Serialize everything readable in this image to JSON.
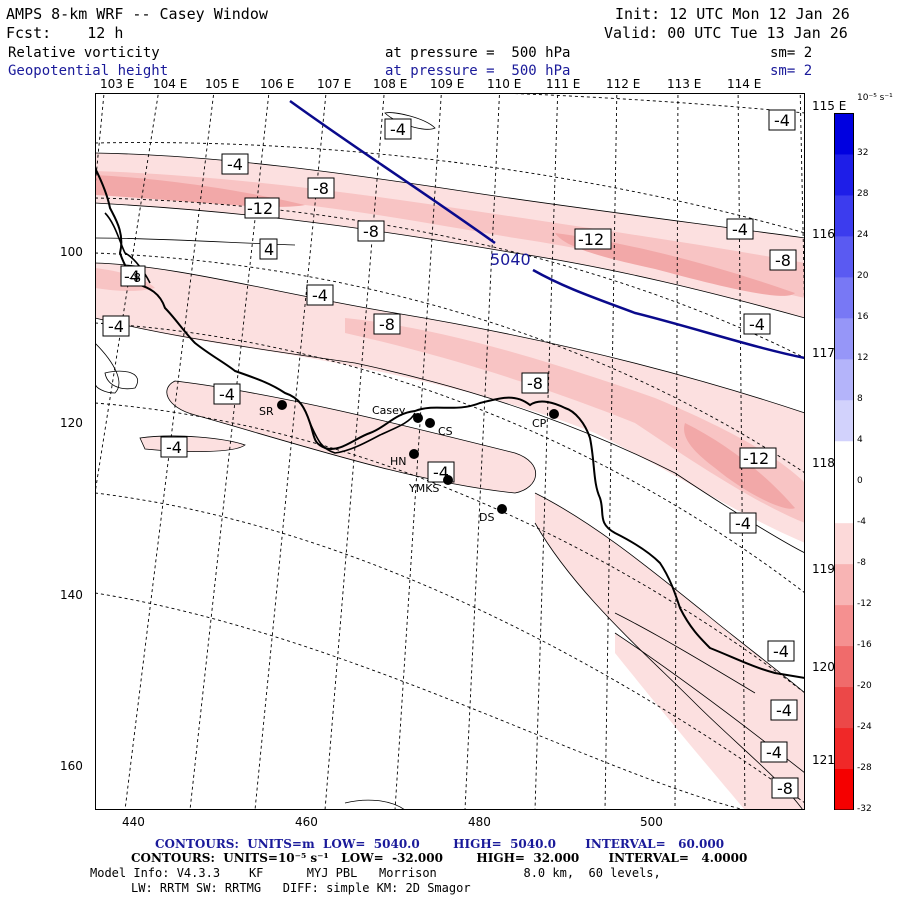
{
  "header": {
    "title": "AMPS 8-km WRF -- Casey Window",
    "init": "Init: 12 UTC Mon 12 Jan 26",
    "fcst": "Fcst:    12 h",
    "valid": "Valid: 00 UTC Tue 13 Jan 26",
    "field1": {
      "name": "Relative vorticity",
      "level": "at pressure =  500 hPa",
      "sm": "sm= 2"
    },
    "field2": {
      "name": "Geopotential height",
      "level": "at pressure =  500 hPa",
      "sm": "sm= 2"
    }
  },
  "lon_labels": [
    "103 E",
    "104 E",
    "105 E",
    "106 E",
    "107 E",
    "108 E",
    "109 E",
    "110 E",
    "111 E",
    "112 E",
    "113 E",
    "114 E"
  ],
  "lat_labels": [
    "115 E",
    "116 E",
    "117 E",
    "118 E",
    "119 E",
    "120 E",
    "121 E"
  ],
  "y_ticks": [
    "100",
    "120",
    "140",
    "160"
  ],
  "x_ticks": [
    "440",
    "460",
    "480",
    "500"
  ],
  "contour_labels": [
    "-4",
    "-4",
    "-4",
    "-8",
    "-12",
    "-8",
    "-12",
    "-4",
    "-8",
    "4",
    "-4",
    "-8",
    "-4",
    "-8",
    "-4",
    "-4",
    "-4",
    "-4",
    "-12",
    "-4",
    "-4",
    "-4",
    "-4",
    "-4",
    "-8",
    "-8"
  ],
  "height_label": "5040",
  "stations": [
    "SR",
    "Casey",
    "CS",
    "HN",
    "YMKS",
    "DS",
    "CP"
  ],
  "colorbar": {
    "unit": "10⁻⁵ s⁻¹",
    "ticks": [
      "32",
      "28",
      "24",
      "20",
      "16",
      "12",
      "8",
      "4",
      "0",
      "-4",
      "-8",
      "-12",
      "-16",
      "-20",
      "-24",
      "-28",
      "-32"
    ],
    "colors": [
      "#0000e0",
      "#1e1ee8",
      "#3c3cee",
      "#5a5af2",
      "#7878f5",
      "#9696f8",
      "#b4b4fa",
      "#d2d2fc",
      "#ffffff",
      "#ffffff",
      "#fcd9d9",
      "#f8b4b4",
      "#f59090",
      "#f06b6b",
      "#ec4848",
      "#f02828",
      "#f50000"
    ]
  },
  "footer": {
    "line1": "CONTOURS:  UNITS=m  LOW=  5040.0        HIGH=  5040.0       INTERVAL=   60.000",
    "line2": "CONTOURS:  UNITS=10⁻⁵ s⁻¹   LOW=  -32.000        HIGH=  32.000       INTERVAL=   4.0000",
    "line3": "Model Info: V4.3.3    KF      MYJ PBL   Morrison            8.0 km,  60 levels,",
    "line4": "LW: RRTM SW: RRTMG   DIFF: simple KM: 2D Smagor"
  },
  "colors": {
    "header_blue": "#1a1a9a",
    "height_contour": "#0a0a8c"
  }
}
